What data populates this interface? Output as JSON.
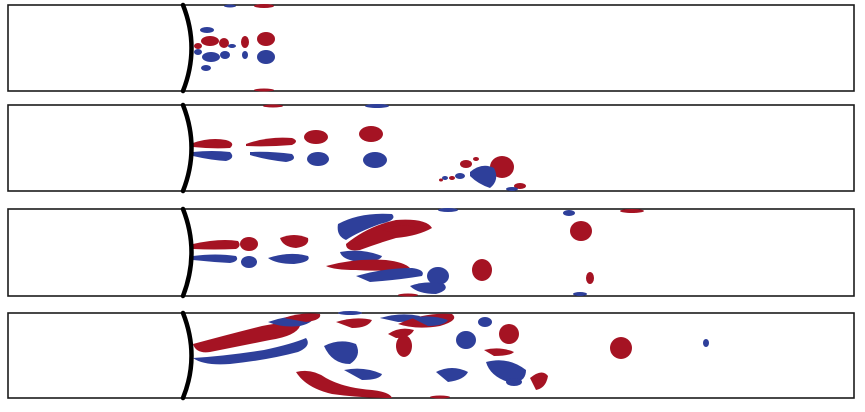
{
  "figure": {
    "description_free": true,
    "panel_count": 4,
    "colors": {
      "positive_vorticity": "#a51323",
      "negative_vorticity": "#2e3f9a",
      "wall": "#000000",
      "frame": "#1a1a1a",
      "background": "#ffffff"
    }
  }
}
